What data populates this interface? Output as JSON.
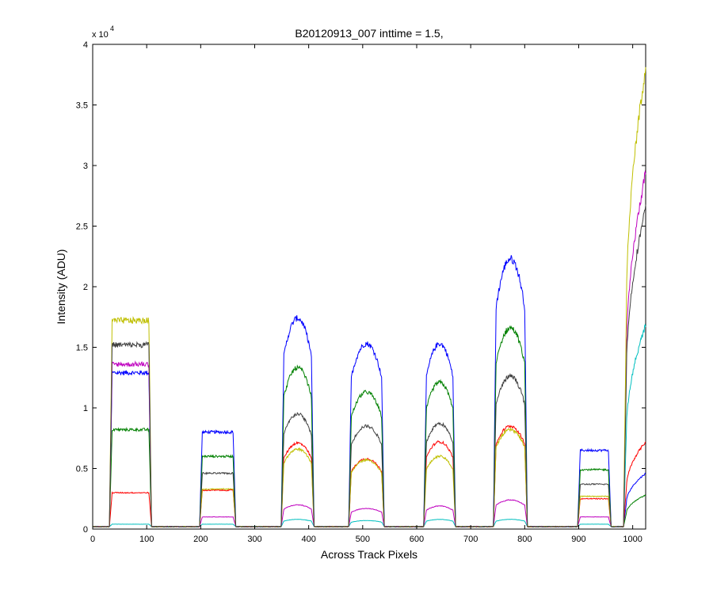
{
  "chart_data": {
    "type": "line",
    "title": "B20120913_007 inttime = 1.5,",
    "xlabel": "Across Track Pixels",
    "ylabel": "Intensity (ADU)",
    "xlim": [
      0,
      1024
    ],
    "ylim": [
      0,
      40000
    ],
    "y_exponent_label": "x 10",
    "y_exponent_power": "4",
    "x_ticks": [
      0,
      100,
      200,
      300,
      400,
      500,
      600,
      700,
      800,
      900,
      1000
    ],
    "x_tick_labels": [
      "0",
      "100",
      "200",
      "300",
      "400",
      "500",
      "600",
      "700",
      "800",
      "900",
      "1000"
    ],
    "y_ticks": [
      0,
      5000,
      10000,
      15000,
      20000,
      25000,
      30000,
      35000,
      40000
    ],
    "y_tick_labels": [
      "0",
      "0.5",
      "1",
      "1.5",
      "2",
      "2.5",
      "3",
      "3.5",
      "4"
    ],
    "grid": false,
    "legend": "none",
    "background_level": 200,
    "plateaus": [
      {
        "x_start": 36,
        "x_end": 104
      },
      {
        "x_start": 203,
        "x_end": 260
      },
      {
        "x_start": 354,
        "x_end": 405
      },
      {
        "x_start": 479,
        "x_end": 535
      },
      {
        "x_start": 618,
        "x_end": 667
      },
      {
        "x_start": 747,
        "x_end": 800
      },
      {
        "x_start": 903,
        "x_end": 955
      },
      {
        "x_start": 988,
        "x_end": 1024
      }
    ],
    "series": [
      {
        "color": "#0000ff",
        "shape": [
          "flat",
          "flat",
          "dome",
          "dome",
          "dome",
          "dome",
          "flat",
          "rise"
        ],
        "peaks": [
          12900,
          8000,
          17400,
          15300,
          15300,
          22300,
          6500,
          4600
        ]
      },
      {
        "color": "#008000",
        "shape": [
          "flat",
          "flat",
          "dome",
          "dome",
          "dome",
          "dome",
          "flat",
          "rise"
        ],
        "peaks": [
          8200,
          6000,
          13300,
          11300,
          12100,
          16600,
          4900,
          2800
        ]
      },
      {
        "color": "#ff0000",
        "shape": [
          "flat",
          "flat",
          "dome",
          "dome",
          "dome",
          "dome",
          "flat",
          "rise"
        ],
        "peaks": [
          3000,
          3200,
          7100,
          5800,
          7200,
          8500,
          2500,
          7200
        ]
      },
      {
        "color": "#00bfbf",
        "shape": [
          "flat",
          "flat",
          "dome",
          "dome",
          "dome",
          "dome",
          "flat",
          "rise"
        ],
        "peaks": [
          400,
          400,
          800,
          700,
          800,
          800,
          400,
          16800
        ]
      },
      {
        "color": "#bf00bf",
        "shape": [
          "flat",
          "flat",
          "dome",
          "dome",
          "dome",
          "dome",
          "flat",
          "rise"
        ],
        "peaks": [
          13600,
          1000,
          2000,
          1700,
          1900,
          2400,
          1000,
          29400
        ]
      },
      {
        "color": "#bfbf00",
        "shape": [
          "flat",
          "flat",
          "dome",
          "dome",
          "dome",
          "dome",
          "flat",
          "rise"
        ],
        "peaks": [
          17200,
          3300,
          6600,
          5700,
          6000,
          8200,
          2700,
          38000
        ]
      },
      {
        "color": "#404040",
        "shape": [
          "flat",
          "flat",
          "dome",
          "dome",
          "dome",
          "dome",
          "flat",
          "rise"
        ],
        "peaks": [
          15200,
          4600,
          9500,
          8500,
          8700,
          12600,
          3700,
          26500
        ]
      }
    ]
  }
}
